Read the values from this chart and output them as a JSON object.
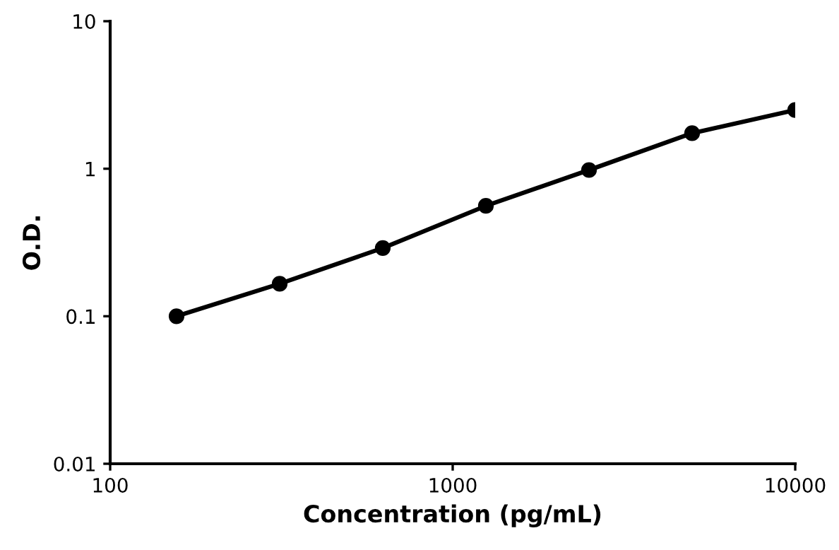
{
  "chart_data": {
    "type": "line",
    "xlabel": "Concentration (pg/mL)",
    "ylabel": "O.D.",
    "log": "xy",
    "x": [
      156.25,
      312.5,
      625,
      1250,
      2500,
      5000,
      10000
    ],
    "series": [
      {
        "color": "#000000",
        "values": [
          0.1,
          0.166,
          0.29,
          0.56,
          0.98,
          1.74,
          2.5
        ]
      }
    ],
    "xlim": [
      100,
      10000
    ],
    "xticks": [
      100,
      1000,
      10000
    ],
    "ylim": [
      0.01,
      10
    ],
    "yticks": [
      0.01,
      0.1,
      1,
      10
    ],
    "marker": "circle",
    "line_style": "solid",
    "grid": false,
    "legend": false
  }
}
